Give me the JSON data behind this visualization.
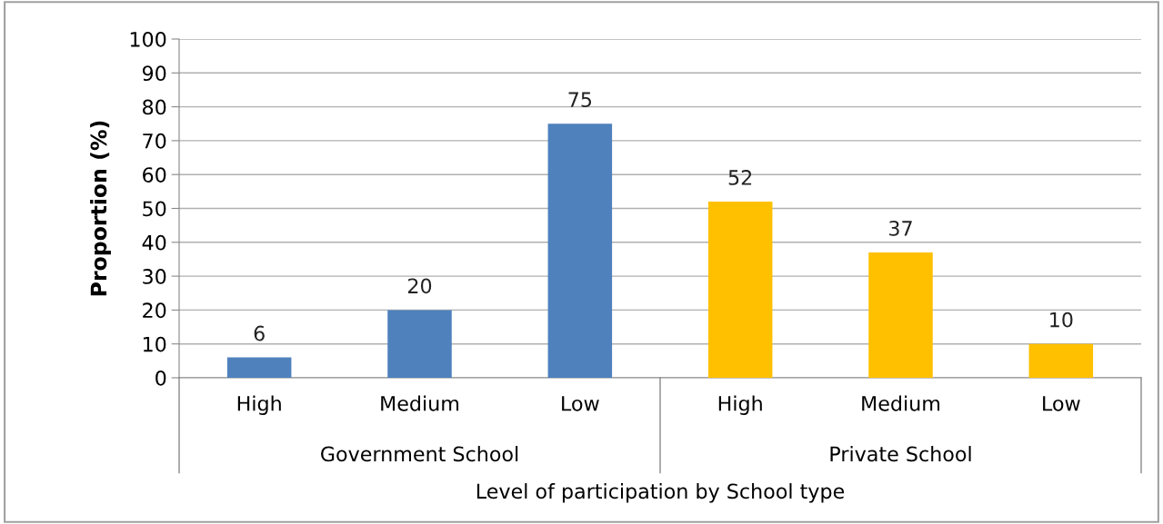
{
  "chart_data": {
    "type": "bar",
    "categories": [
      "High",
      "Medium",
      "Low",
      "High",
      "Medium",
      "Low"
    ],
    "values": [
      6,
      20,
      75,
      52,
      37,
      10
    ],
    "colors": [
      "#4f81bd",
      "#4f81bd",
      "#4f81bd",
      "#ffc000",
      "#ffc000",
      "#ffc000"
    ],
    "ylabel": "Proportion (%)",
    "xlabel": "Level of participation by School type",
    "annotations": [
      "Government School",
      "Private School"
    ],
    "ylim": [
      0,
      100
    ],
    "yticks": [
      0,
      10,
      20,
      30,
      40,
      50,
      60,
      70,
      80,
      90,
      100
    ],
    "data_labels": true,
    "grid": "y"
  }
}
